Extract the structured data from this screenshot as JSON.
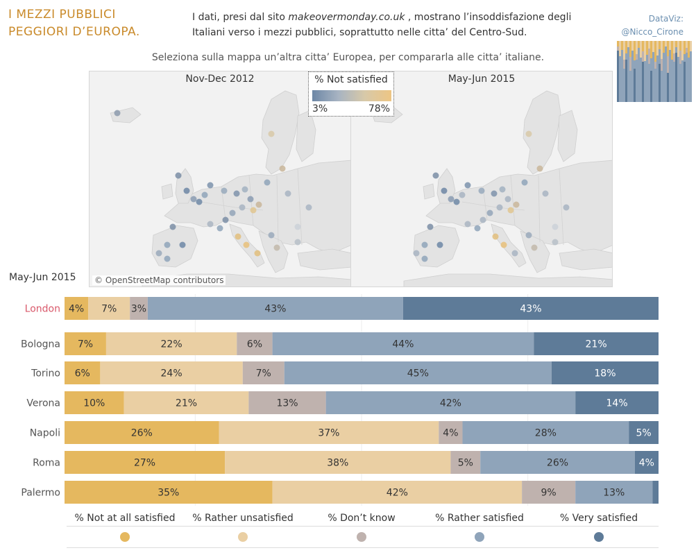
{
  "header": {
    "title_line1": "I MEZZI PUBBLICI",
    "title_line2": "PEGGIORI D’EUROPA.",
    "intro_part1": "I dati, presi dal sito ",
    "intro_site": "makeovermonday.co.uk",
    "intro_part2": " , mostrano l’insoddisfazione degli Italiani verso i mezzi pubblici, soprattutto nelle citta’ del Centro-Sud.",
    "credit_line1": "DataViz:",
    "credit_line2": "@Nicco_Cirone",
    "subtitle": "Seleziona sulla mappa un’altra citta’ Europea, per compararla alle citta’ italiane."
  },
  "maps": {
    "left_title": "Nov-Dec 2012",
    "right_title": "May-Jun 2015",
    "attribution": "© OpenStreetMap contributors",
    "legend": {
      "title": "% Not satisfied",
      "min": "3%",
      "max": "78%"
    }
  },
  "period_label": "May-Jun 2015",
  "colors": {
    "not_at_all": "#e5b85f",
    "rather_unsatisfied": "#eacfa3",
    "dont_know": "#bfb2ae",
    "rather_satisfied": "#8fa4ba",
    "very_satisfied": "#5e7b98",
    "highlight_city": "#d9596b",
    "title": "#c98a2a",
    "credit": "#6b8fb0"
  },
  "chart_data": {
    "type": "bar",
    "orientation": "horizontal",
    "stacked": true,
    "normalized": true,
    "title": "May-Jun 2015",
    "categories": [
      "London",
      "Bologna",
      "Torino",
      "Verona",
      "Napoli",
      "Roma",
      "Palermo"
    ],
    "highlighted": "London",
    "series": [
      {
        "name": "% Not at all satisfied",
        "key": "not_at_all",
        "values": [
          4,
          7,
          6,
          10,
          26,
          27,
          35
        ]
      },
      {
        "name": "% Rather unsatisfied",
        "key": "rather_unsatisfied",
        "values": [
          7,
          22,
          24,
          21,
          37,
          38,
          42
        ]
      },
      {
        "name": "% Don’t know",
        "key": "dont_know",
        "values": [
          3,
          6,
          7,
          13,
          4,
          5,
          9
        ]
      },
      {
        "name": "% Rather satisfied",
        "key": "rather_satisfied",
        "values": [
          43,
          44,
          45,
          42,
          28,
          26,
          13
        ]
      },
      {
        "name": "% Very satisfied",
        "key": "very_satisfied",
        "values": [
          43,
          21,
          18,
          14,
          5,
          4,
          1
        ]
      }
    ],
    "hidden_labels": [
      "Palermo:very_satisfied"
    ],
    "xlabel": "",
    "ylabel": ""
  }
}
